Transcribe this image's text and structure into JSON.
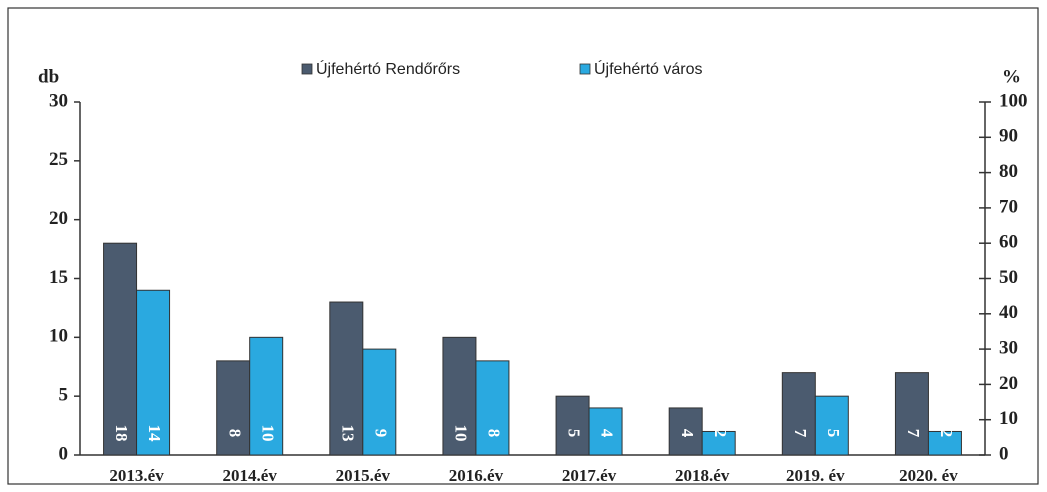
{
  "chart_data": {
    "type": "bar",
    "categories": [
      "2013.év",
      "2014.év",
      "2015.év",
      "2016.év",
      "2017.év",
      "2018.év",
      "2019. év",
      "2020. év"
    ],
    "series": [
      {
        "name": "Újfehértó Rendőrőrs",
        "color": "#4b5b6f",
        "values": [
          18,
          8,
          13,
          10,
          5,
          4,
          7,
          7
        ]
      },
      {
        "name": "Újfehértó város",
        "color": "#2aa9e0",
        "values": [
          14,
          10,
          9,
          8,
          4,
          2,
          5,
          2
        ]
      }
    ],
    "ylabel": "db",
    "y2label": "%",
    "ylim": [
      0,
      30
    ],
    "yticks": [
      0,
      5,
      10,
      15,
      20,
      25,
      30
    ],
    "y2lim": [
      0,
      100
    ],
    "y2ticks": [
      0,
      10,
      20,
      30,
      40,
      50,
      60,
      70,
      80,
      90,
      100
    ],
    "legend": "top"
  }
}
